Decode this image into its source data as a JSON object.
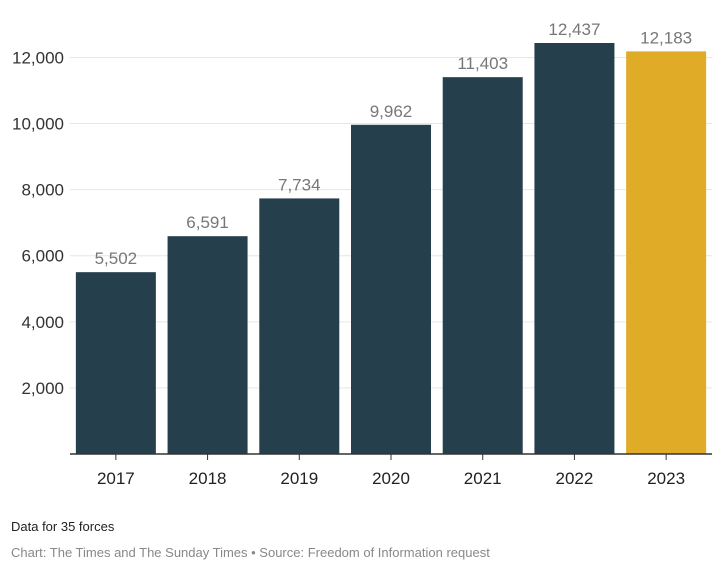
{
  "chart_data": {
    "type": "bar",
    "title": "",
    "xlabel": "",
    "ylabel": "",
    "categories": [
      "2017",
      "2018",
      "2019",
      "2020",
      "2021",
      "2022",
      "2023"
    ],
    "values": [
      5502,
      6591,
      7734,
      9962,
      11403,
      12437,
      12183
    ],
    "value_labels": [
      "5,502",
      "6,591",
      "7,734",
      "9,962",
      "11,403",
      "12,437",
      "12,183"
    ],
    "yticks": [
      2000,
      4000,
      6000,
      8000,
      10000,
      12000
    ],
    "ytick_labels": [
      "2,000",
      "4,000",
      "6,000",
      "8,000",
      "10,000",
      "12,000"
    ],
    "ylim": [
      0,
      12437
    ],
    "grid": true,
    "bar_color": "#253f4d",
    "highlight_color": "#e0ab27",
    "highlight_category": "2023"
  },
  "note": "Data for 35 forces",
  "credit": "Chart: The Times and The Sunday Times • Source: Freedom of Information request"
}
